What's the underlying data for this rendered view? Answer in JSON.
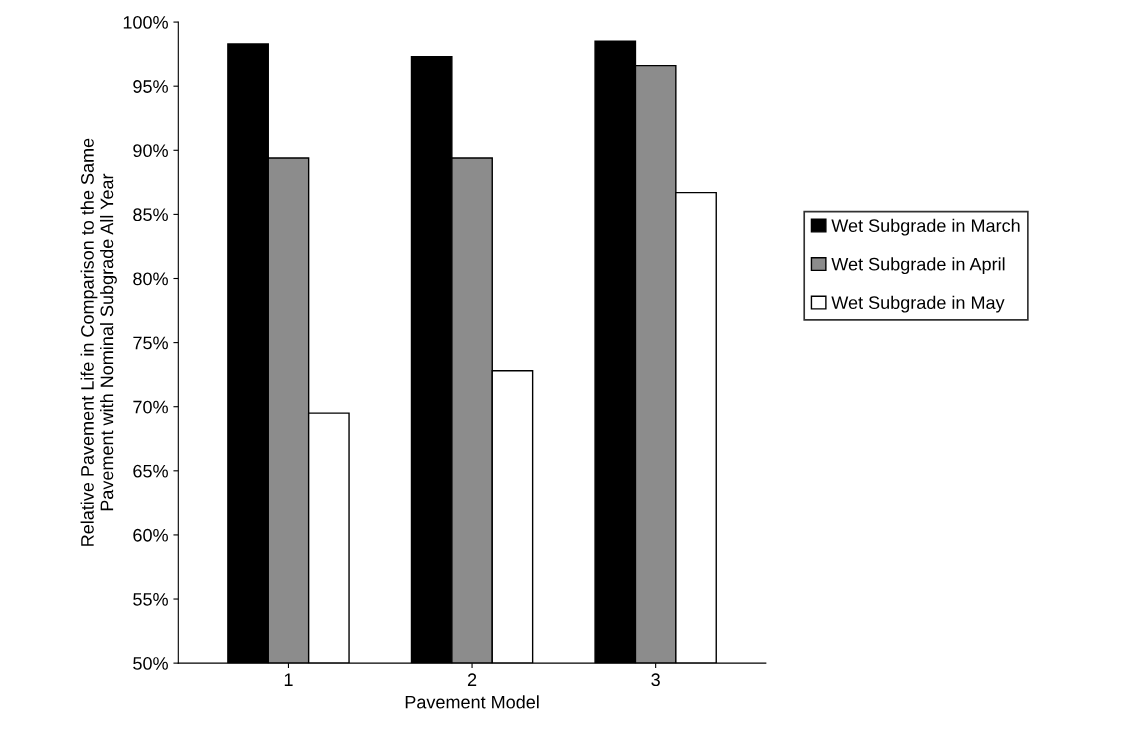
{
  "chart_data": {
    "type": "bar",
    "xlabel": "Pavement Model",
    "ylabel": "Relative Pavement Life in Comparison to the Same\nPavement with Nominal Subgrade All Year",
    "categories": [
      "1",
      "2",
      "3"
    ],
    "series": [
      {
        "name": "Wet Subgrade in March",
        "color": "#000000",
        "values": [
          0.983,
          0.973,
          0.985
        ]
      },
      {
        "name": "Wet Subgrade in April",
        "color": "#8c8c8c",
        "values": [
          0.894,
          0.894,
          0.966
        ]
      },
      {
        "name": "Wet Subgrade in May",
        "color": "#ffffff",
        "values": [
          0.695,
          0.728,
          0.867
        ]
      }
    ],
    "ylim": [
      0.5,
      1.0
    ],
    "yticks": [
      {
        "value": 0.5,
        "label": "50%"
      },
      {
        "value": 0.55,
        "label": "55%"
      },
      {
        "value": 0.6,
        "label": "60%"
      },
      {
        "value": 0.65,
        "label": "65%"
      },
      {
        "value": 0.7,
        "label": "70%"
      },
      {
        "value": 0.75,
        "label": "75%"
      },
      {
        "value": 0.8,
        "label": "80%"
      },
      {
        "value": 0.85,
        "label": "85%"
      },
      {
        "value": 0.9,
        "label": "90%"
      },
      {
        "value": 0.95,
        "label": "95%"
      },
      {
        "value": 1.0,
        "label": "100%"
      }
    ],
    "grid": false,
    "legend": "right"
  }
}
